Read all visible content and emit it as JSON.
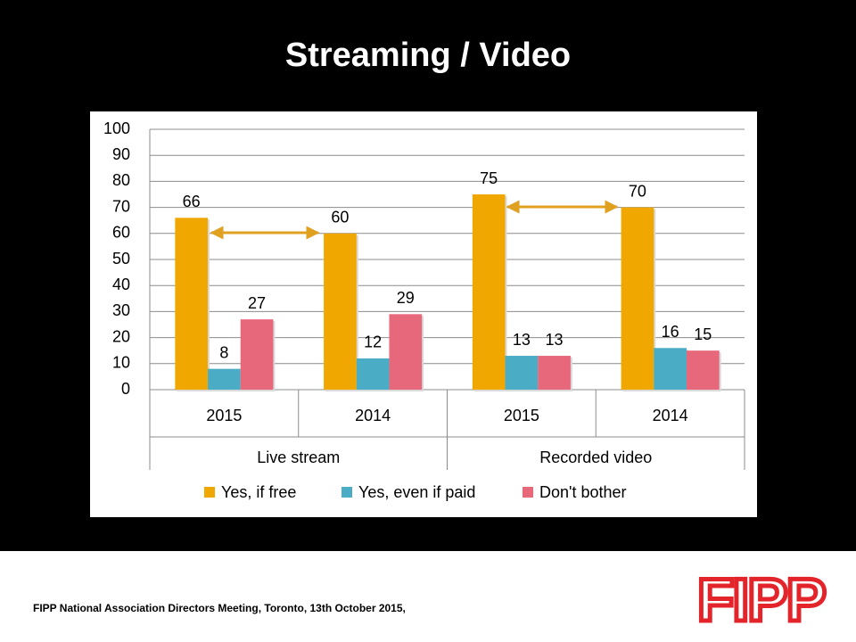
{
  "chart_data": {
    "type": "bar",
    "title": "Streaming / Video",
    "categories": [
      "2015",
      "2014",
      "2015",
      "2014"
    ],
    "groups": [
      "Live stream",
      "Recorded video"
    ],
    "series": [
      {
        "name": "Yes, if free",
        "color": "#f0a800",
        "values": [
          66,
          60,
          75,
          70
        ]
      },
      {
        "name": "Yes, even if paid",
        "color": "#4bacc6",
        "values": [
          8,
          12,
          13,
          16
        ]
      },
      {
        "name": "Don't bother",
        "color": "#e8687b",
        "values": [
          27,
          29,
          13,
          15
        ]
      }
    ],
    "ylim": [
      0,
      100
    ],
    "yticks": [
      0,
      10,
      20,
      30,
      40,
      50,
      60,
      70,
      80,
      90,
      100
    ],
    "grid": true,
    "legend": "bottom"
  },
  "footer": {
    "text": "FIPP National Association Directors Meeting, Toronto, 13th October 2015,",
    "logo": "FIPP"
  }
}
